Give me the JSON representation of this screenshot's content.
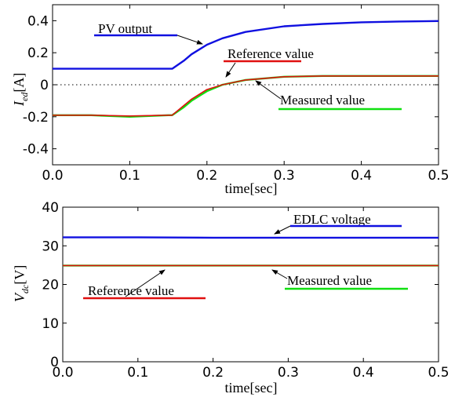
{
  "chart_data": [
    {
      "type": "line",
      "xlabel": "time[sec]",
      "ylabel_main": "I",
      "ylabel_sub": "ed",
      "ylabel_unit": "[A]",
      "xlim": [
        0,
        0.5
      ],
      "ylim": [
        -0.5,
        0.5
      ],
      "xticks": [
        "0.0",
        "0.1",
        "0.2",
        "0.3",
        "0.4",
        "0.5"
      ],
      "yticks": [
        "-0.4",
        "-0.2",
        "0",
        "0.2",
        "0.4"
      ],
      "zero_line": true,
      "grid": false,
      "series": [
        {
          "name": "PV output",
          "color": "#1010e0",
          "x": [
            0,
            0.05,
            0.1,
            0.15,
            0.155,
            0.17,
            0.18,
            0.2,
            0.22,
            0.25,
            0.3,
            0.35,
            0.4,
            0.45,
            0.5
          ],
          "y": [
            0.1,
            0.1,
            0.1,
            0.1,
            0.1,
            0.15,
            0.19,
            0.25,
            0.29,
            0.33,
            0.365,
            0.38,
            0.39,
            0.395,
            0.398
          ]
        },
        {
          "name": "Reference value",
          "color": "#e01010",
          "x": [
            0,
            0.05,
            0.1,
            0.15,
            0.155,
            0.17,
            0.18,
            0.2,
            0.22,
            0.25,
            0.3,
            0.35,
            0.4,
            0.45,
            0.5
          ],
          "y": [
            -0.19,
            -0.19,
            -0.195,
            -0.19,
            -0.19,
            -0.13,
            -0.09,
            -0.03,
            0.0,
            0.03,
            0.05,
            0.055,
            0.055,
            0.055,
            0.055
          ]
        },
        {
          "name": "Measured value",
          "color": "#10e010",
          "x": [
            0,
            0.05,
            0.1,
            0.15,
            0.155,
            0.17,
            0.18,
            0.2,
            0.22,
            0.25,
            0.3,
            0.35,
            0.4,
            0.45,
            0.5
          ],
          "y": [
            -0.19,
            -0.19,
            -0.2,
            -0.19,
            -0.19,
            -0.14,
            -0.1,
            -0.04,
            0.0,
            0.03,
            0.05,
            0.055,
            0.055,
            0.055,
            0.055
          ]
        }
      ],
      "annotations": [
        "PV output",
        "Reference value",
        "Measured value"
      ]
    },
    {
      "type": "line",
      "xlabel": "time[sec]",
      "ylabel_main": "V",
      "ylabel_sub": "dc",
      "ylabel_unit": "[V]",
      "xlim": [
        0,
        0.5
      ],
      "ylim": [
        0,
        40
      ],
      "xticks": [
        "0.0",
        "0.1",
        "0.2",
        "0.3",
        "0.4",
        "0.5"
      ],
      "yticks": [
        "0",
        "10",
        "20",
        "30",
        "40"
      ],
      "grid": false,
      "series": [
        {
          "name": "EDLC voltage",
          "color": "#1010e0",
          "x": [
            0,
            0.1,
            0.2,
            0.3,
            0.4,
            0.5
          ],
          "y": [
            32.2,
            32.2,
            32.1,
            32.1,
            32.1,
            32.1
          ]
        },
        {
          "name": "Reference value",
          "color": "#e01010",
          "x": [
            0,
            0.1,
            0.2,
            0.3,
            0.4,
            0.5
          ],
          "y": [
            24.9,
            24.9,
            24.9,
            24.9,
            24.9,
            24.9
          ]
        },
        {
          "name": "Measured value",
          "color": "#10e010",
          "x": [
            0,
            0.1,
            0.2,
            0.3,
            0.4,
            0.5
          ],
          "y": [
            24.9,
            24.9,
            24.9,
            24.9,
            24.9,
            24.9
          ]
        }
      ],
      "annotations": [
        "EDLC voltage",
        "Reference value",
        "Measured value"
      ]
    }
  ]
}
